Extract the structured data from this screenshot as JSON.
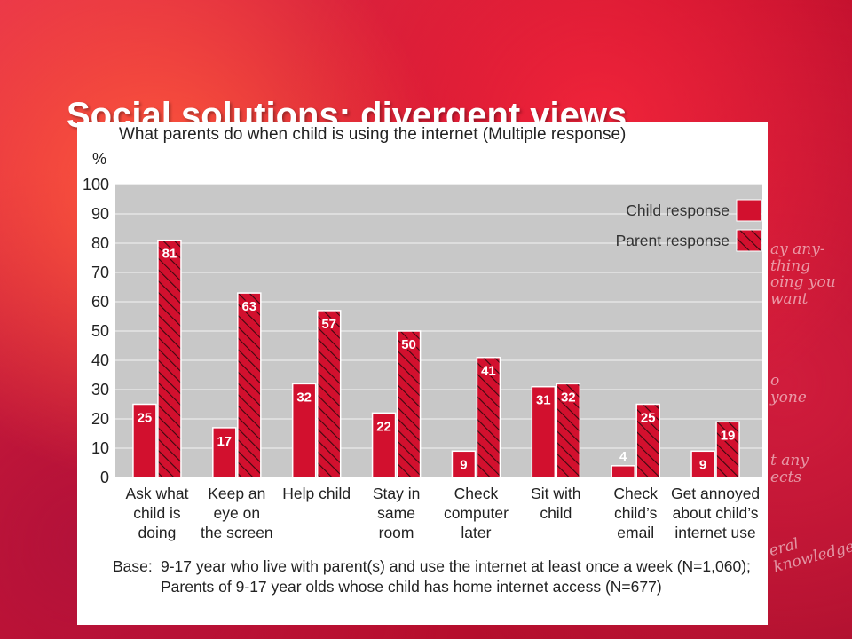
{
  "slide": {
    "title": "Social solutions: divergent views"
  },
  "chart_data": {
    "type": "bar",
    "title": "What parents do when child is using the internet (Multiple response)",
    "ylabel": "%",
    "ylim": [
      0,
      100
    ],
    "yticks": [
      0,
      10,
      20,
      30,
      40,
      50,
      60,
      70,
      80,
      90,
      100
    ],
    "grid": true,
    "legend_position": "top-right",
    "categories": [
      [
        "Ask what",
        "child is",
        "doing"
      ],
      [
        "Keep an",
        "eye on",
        "the screen"
      ],
      [
        "Help child"
      ],
      [
        "Stay in",
        "same",
        "room"
      ],
      [
        "Check",
        "computer",
        "later"
      ],
      [
        "Sit with",
        "child"
      ],
      [
        "Check",
        "child’s",
        "email"
      ],
      [
        "Get annoyed",
        "about child’s",
        "internet use"
      ]
    ],
    "series": [
      {
        "name": "Child response",
        "style": "solid",
        "values": [
          25,
          17,
          32,
          22,
          9,
          31,
          4,
          9
        ]
      },
      {
        "name": "Parent response",
        "style": "hatched",
        "values": [
          81,
          63,
          57,
          50,
          41,
          32,
          25,
          19
        ]
      }
    ],
    "colors": {
      "bar": "#d2102e",
      "plot_bg": "#c8c8c8",
      "grid": "#e6e6e6"
    },
    "base_label": "Base:",
    "base_text": "9-17 year who live with parent(s) and use the internet at least once a week (N=1,060); Parents of 9-17 year olds whose child has home internet access (N=677)"
  },
  "background_scribbles": [
    [
      "ay any-",
      "thing",
      "oing you",
      "want"
    ],
    [
      "o",
      "yone"
    ],
    [
      "t any",
      "ects"
    ],
    [
      "eral",
      "knowledge"
    ]
  ]
}
